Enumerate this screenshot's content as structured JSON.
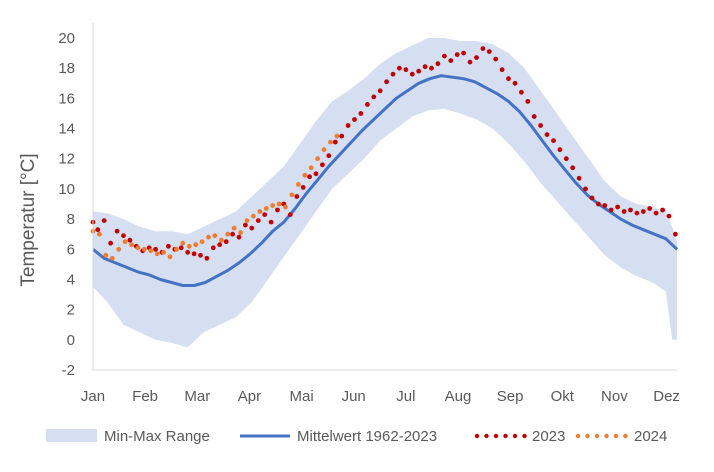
{
  "chart_data": {
    "type": "line",
    "title": "",
    "xlabel": "",
    "ylabel": "Temperatur [°C]",
    "ylim": [
      -2,
      20
    ],
    "yticks": [
      -2,
      0,
      2,
      4,
      6,
      8,
      10,
      12,
      14,
      16,
      18,
      20
    ],
    "months": [
      "Jan",
      "Feb",
      "Mar",
      "Apr",
      "Mai",
      "Jun",
      "Jul",
      "Aug",
      "Sep",
      "Okt",
      "Nov",
      "Dez"
    ],
    "x_unit": "day of year",
    "grid": false,
    "legend_position": "bottom",
    "legend": {
      "range": "Min-Max Range",
      "mean": "Mittelwert 1962-2023",
      "y2023": "2023",
      "y2024": "2024"
    },
    "colors": {
      "range": "#d6dff2",
      "mean": "#4472c4",
      "y2023": "#c00000",
      "y2024": "#ed7d31",
      "axis": "#d9d9d9",
      "text": "#595959"
    },
    "series": [
      {
        "name": "Min-Max Range",
        "kind": "band",
        "x": [
          1,
          10,
          20,
          30,
          40,
          50,
          60,
          70,
          80,
          90,
          100,
          110,
          120,
          130,
          140,
          150,
          160,
          170,
          180,
          190,
          200,
          210,
          220,
          230,
          240,
          250,
          260,
          270,
          280,
          290,
          300,
          310,
          320,
          330,
          340,
          350,
          358,
          362,
          365
        ],
        "min": [
          3.5,
          2.5,
          1.0,
          0.5,
          0.0,
          -0.2,
          -0.5,
          0.5,
          1.0,
          1.5,
          2.5,
          4.0,
          5.5,
          7.0,
          8.5,
          10.0,
          11.0,
          12.0,
          13.2,
          14.0,
          14.8,
          15.2,
          15.3,
          15.0,
          14.6,
          14.0,
          13.0,
          11.8,
          10.4,
          9.2,
          8.0,
          6.8,
          5.6,
          4.8,
          4.2,
          3.8,
          3.2,
          0.0,
          0.0
        ],
        "max": [
          8.5,
          8.4,
          8.0,
          7.5,
          7.2,
          7.2,
          7.0,
          7.5,
          8.0,
          8.5,
          9.5,
          10.5,
          11.5,
          13.0,
          14.5,
          15.8,
          16.5,
          17.3,
          18.3,
          19.0,
          19.5,
          20.0,
          20.0,
          19.8,
          19.8,
          19.6,
          19.0,
          18.0,
          16.5,
          15.0,
          13.5,
          12.0,
          10.5,
          9.5,
          9.0,
          8.8,
          8.5,
          7.5,
          6.5
        ]
      },
      {
        "name": "Mittelwert 1962-2023",
        "kind": "line",
        "x": [
          1,
          8,
          15,
          22,
          29,
          36,
          43,
          50,
          57,
          64,
          71,
          78,
          85,
          92,
          99,
          106,
          113,
          120,
          127,
          134,
          141,
          148,
          155,
          162,
          169,
          176,
          183,
          190,
          197,
          204,
          211,
          218,
          225,
          232,
          239,
          246,
          253,
          260,
          267,
          274,
          281,
          288,
          295,
          302,
          309,
          316,
          323,
          330,
          337,
          344,
          351,
          358,
          365
        ],
        "y": [
          6.0,
          5.4,
          5.1,
          4.8,
          4.5,
          4.3,
          4.0,
          3.8,
          3.6,
          3.6,
          3.8,
          4.2,
          4.6,
          5.1,
          5.7,
          6.4,
          7.2,
          7.8,
          8.7,
          9.7,
          10.6,
          11.5,
          12.3,
          13.1,
          13.9,
          14.6,
          15.3,
          16.0,
          16.5,
          17.0,
          17.3,
          17.5,
          17.4,
          17.3,
          17.1,
          16.7,
          16.3,
          15.8,
          15.1,
          14.2,
          13.2,
          12.2,
          11.3,
          10.4,
          9.6,
          9.0,
          8.5,
          8.0,
          7.6,
          7.3,
          7.0,
          6.7,
          6.0
        ]
      },
      {
        "name": "2023",
        "kind": "dots",
        "x": [
          1,
          4,
          8,
          12,
          16,
          20,
          24,
          28,
          32,
          36,
          40,
          44,
          48,
          52,
          56,
          60,
          64,
          68,
          72,
          76,
          80,
          84,
          88,
          92,
          96,
          100,
          104,
          108,
          112,
          116,
          120,
          124,
          128,
          132,
          136,
          140,
          144,
          148,
          152,
          156,
          160,
          164,
          168,
          172,
          176,
          180,
          184,
          188,
          192,
          196,
          200,
          204,
          208,
          212,
          216,
          220,
          224,
          228,
          232,
          236,
          240,
          244,
          248,
          252,
          256,
          260,
          264,
          268,
          272,
          276,
          280,
          284,
          288,
          292,
          296,
          300,
          304,
          308,
          312,
          316,
          320,
          324,
          328,
          332,
          336,
          340,
          344,
          348,
          352,
          356,
          360,
          364
        ],
        "y": [
          7.8,
          7.3,
          7.9,
          6.4,
          7.2,
          6.9,
          6.6,
          6.2,
          5.9,
          6.1,
          6.0,
          5.8,
          6.2,
          6.0,
          6.1,
          5.8,
          5.7,
          5.6,
          5.4,
          6.1,
          6.3,
          6.5,
          7.0,
          6.8,
          7.6,
          7.4,
          7.9,
          8.3,
          7.8,
          8.6,
          9.0,
          8.3,
          9.5,
          10.1,
          10.8,
          11.0,
          11.6,
          12.2,
          13.1,
          13.5,
          14.2,
          14.6,
          15.0,
          15.6,
          16.1,
          16.5,
          17.1,
          17.6,
          18.0,
          17.9,
          17.6,
          17.8,
          18.1,
          18.0,
          18.3,
          18.8,
          18.5,
          18.9,
          19.0,
          18.4,
          18.7,
          19.3,
          19.1,
          18.6,
          17.9,
          17.3,
          17.0,
          16.4,
          15.8,
          14.8,
          14.2,
          13.6,
          13.2,
          12.6,
          12.0,
          11.4,
          10.7,
          10.0,
          9.4,
          9.0,
          8.9,
          8.6,
          8.8,
          8.5,
          8.6,
          8.4,
          8.5,
          8.7,
          8.4,
          8.6,
          8.2,
          7.0
        ]
      },
      {
        "name": "2024",
        "kind": "dots",
        "x": [
          1,
          5,
          9,
          13,
          17,
          21,
          25,
          29,
          33,
          37,
          41,
          45,
          49,
          53,
          57,
          61,
          65,
          69,
          73,
          77,
          81,
          85,
          89,
          93,
          97,
          101,
          105,
          109,
          113,
          117,
          121,
          125,
          129,
          133,
          137,
          141,
          145,
          149,
          153
        ],
        "y": [
          7.2,
          7.0,
          5.6,
          5.4,
          6.0,
          6.5,
          6.3,
          6.1,
          6.0,
          5.9,
          5.7,
          5.8,
          5.5,
          6.0,
          6.4,
          6.2,
          6.3,
          6.5,
          6.8,
          6.9,
          6.6,
          7.0,
          7.4,
          7.1,
          7.9,
          8.2,
          8.5,
          8.7,
          8.9,
          9.0,
          8.8,
          9.6,
          10.3,
          10.9,
          11.4,
          12.0,
          12.6,
          13.1,
          13.5
        ]
      }
    ]
  }
}
